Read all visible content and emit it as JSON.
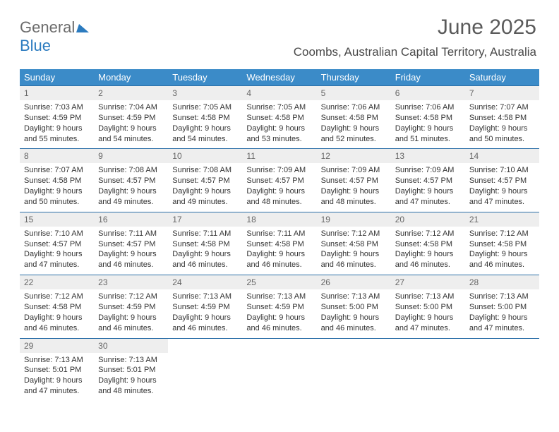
{
  "logo": {
    "text1": "General",
    "text2": "Blue"
  },
  "title": "June 2025",
  "location": "Coombs, Australian Capital Territory, Australia",
  "colors": {
    "header_bg": "#3b8bc8",
    "header_text": "#ffffff",
    "daynum_bg": "#eeeeee",
    "row_border": "#2b6fa8",
    "logo_gray": "#6b6b6b",
    "logo_blue": "#2b7bbf"
  },
  "weekdays": [
    "Sunday",
    "Monday",
    "Tuesday",
    "Wednesday",
    "Thursday",
    "Friday",
    "Saturday"
  ],
  "weeks": [
    [
      {
        "d": "1",
        "sr": "7:03 AM",
        "ss": "4:59 PM",
        "dl": "9 hours and 55 minutes."
      },
      {
        "d": "2",
        "sr": "7:04 AM",
        "ss": "4:59 PM",
        "dl": "9 hours and 54 minutes."
      },
      {
        "d": "3",
        "sr": "7:05 AM",
        "ss": "4:58 PM",
        "dl": "9 hours and 54 minutes."
      },
      {
        "d": "4",
        "sr": "7:05 AM",
        "ss": "4:58 PM",
        "dl": "9 hours and 53 minutes."
      },
      {
        "d": "5",
        "sr": "7:06 AM",
        "ss": "4:58 PM",
        "dl": "9 hours and 52 minutes."
      },
      {
        "d": "6",
        "sr": "7:06 AM",
        "ss": "4:58 PM",
        "dl": "9 hours and 51 minutes."
      },
      {
        "d": "7",
        "sr": "7:07 AM",
        "ss": "4:58 PM",
        "dl": "9 hours and 50 minutes."
      }
    ],
    [
      {
        "d": "8",
        "sr": "7:07 AM",
        "ss": "4:58 PM",
        "dl": "9 hours and 50 minutes."
      },
      {
        "d": "9",
        "sr": "7:08 AM",
        "ss": "4:57 PM",
        "dl": "9 hours and 49 minutes."
      },
      {
        "d": "10",
        "sr": "7:08 AM",
        "ss": "4:57 PM",
        "dl": "9 hours and 49 minutes."
      },
      {
        "d": "11",
        "sr": "7:09 AM",
        "ss": "4:57 PM",
        "dl": "9 hours and 48 minutes."
      },
      {
        "d": "12",
        "sr": "7:09 AM",
        "ss": "4:57 PM",
        "dl": "9 hours and 48 minutes."
      },
      {
        "d": "13",
        "sr": "7:09 AM",
        "ss": "4:57 PM",
        "dl": "9 hours and 47 minutes."
      },
      {
        "d": "14",
        "sr": "7:10 AM",
        "ss": "4:57 PM",
        "dl": "9 hours and 47 minutes."
      }
    ],
    [
      {
        "d": "15",
        "sr": "7:10 AM",
        "ss": "4:57 PM",
        "dl": "9 hours and 47 minutes."
      },
      {
        "d": "16",
        "sr": "7:11 AM",
        "ss": "4:57 PM",
        "dl": "9 hours and 46 minutes."
      },
      {
        "d": "17",
        "sr": "7:11 AM",
        "ss": "4:58 PM",
        "dl": "9 hours and 46 minutes."
      },
      {
        "d": "18",
        "sr": "7:11 AM",
        "ss": "4:58 PM",
        "dl": "9 hours and 46 minutes."
      },
      {
        "d": "19",
        "sr": "7:12 AM",
        "ss": "4:58 PM",
        "dl": "9 hours and 46 minutes."
      },
      {
        "d": "20",
        "sr": "7:12 AM",
        "ss": "4:58 PM",
        "dl": "9 hours and 46 minutes."
      },
      {
        "d": "21",
        "sr": "7:12 AM",
        "ss": "4:58 PM",
        "dl": "9 hours and 46 minutes."
      }
    ],
    [
      {
        "d": "22",
        "sr": "7:12 AM",
        "ss": "4:58 PM",
        "dl": "9 hours and 46 minutes."
      },
      {
        "d": "23",
        "sr": "7:12 AM",
        "ss": "4:59 PM",
        "dl": "9 hours and 46 minutes."
      },
      {
        "d": "24",
        "sr": "7:13 AM",
        "ss": "4:59 PM",
        "dl": "9 hours and 46 minutes."
      },
      {
        "d": "25",
        "sr": "7:13 AM",
        "ss": "4:59 PM",
        "dl": "9 hours and 46 minutes."
      },
      {
        "d": "26",
        "sr": "7:13 AM",
        "ss": "5:00 PM",
        "dl": "9 hours and 46 minutes."
      },
      {
        "d": "27",
        "sr": "7:13 AM",
        "ss": "5:00 PM",
        "dl": "9 hours and 47 minutes."
      },
      {
        "d": "28",
        "sr": "7:13 AM",
        "ss": "5:00 PM",
        "dl": "9 hours and 47 minutes."
      }
    ],
    [
      {
        "d": "29",
        "sr": "7:13 AM",
        "ss": "5:01 PM",
        "dl": "9 hours and 47 minutes."
      },
      {
        "d": "30",
        "sr": "7:13 AM",
        "ss": "5:01 PM",
        "dl": "9 hours and 48 minutes."
      },
      null,
      null,
      null,
      null,
      null
    ]
  ],
  "labels": {
    "sunrise": "Sunrise:",
    "sunset": "Sunset:",
    "daylight": "Daylight:"
  }
}
